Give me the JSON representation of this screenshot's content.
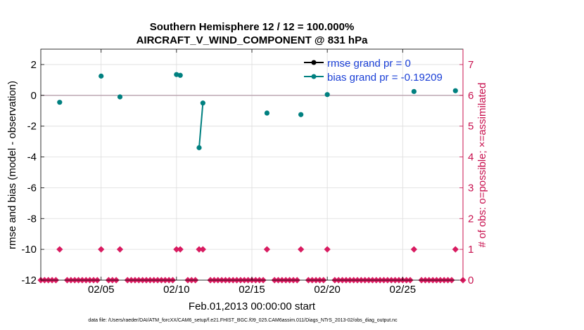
{
  "chart_data": {
    "type": "scatter",
    "title": [
      "Southern Hemisphere 12 / 12 = 100.000%",
      "AIRCRAFT_V_WIND_COMPONENT @ 831 hPa"
    ],
    "xlabel": "Feb.01,2013 00:00:00 start",
    "ylabel_left": "rmse and bias (model - observation)",
    "ylabel_right": "# of obs: o=possible; ×=assimilated",
    "xlim": [
      1.0,
      29.0
    ],
    "ylim_left": [
      -12,
      3
    ],
    "ylim_right": [
      0,
      7.5
    ],
    "x_ticks": [
      {
        "value": 5.0,
        "label": "02/05"
      },
      {
        "value": 10.0,
        "label": "02/10"
      },
      {
        "value": 15.0,
        "label": "02/15"
      },
      {
        "value": 20.0,
        "label": "02/20"
      },
      {
        "value": 25.0,
        "label": "02/25"
      }
    ],
    "y_ticks_left": [
      2,
      0,
      -2,
      -4,
      -6,
      -8,
      -10,
      -12
    ],
    "y_ticks_right": [
      0,
      1,
      2,
      3,
      4,
      5,
      6,
      7
    ],
    "grid": true,
    "zero_line": 0,
    "legend_position": "top-right",
    "series": [
      {
        "name": "rmse grand pr = 0",
        "color": "#000000",
        "marker": "circle",
        "points": []
      },
      {
        "name": "bias grand pr = -0.19209",
        "color": "#008080",
        "marker": "circle",
        "segments": [
          [
            [
              2.25,
              -0.45
            ]
          ],
          [
            [
              5.0,
              1.25
            ]
          ],
          [
            [
              6.25,
              -0.1
            ]
          ],
          [
            [
              10.0,
              1.35
            ],
            [
              10.25,
              1.3
            ]
          ],
          [
            [
              11.5,
              -3.4
            ],
            [
              11.75,
              -0.5
            ]
          ],
          [
            [
              16.0,
              -1.15
            ]
          ],
          [
            [
              18.25,
              -1.25
            ]
          ],
          [
            [
              20.0,
              0.05
            ]
          ],
          [
            [
              25.75,
              0.25
            ]
          ],
          [
            [
              28.5,
              0.3
            ]
          ]
        ]
      }
    ],
    "obs_counts": {
      "name": "# of obs",
      "color": "#d81b60",
      "x_start": 1.0,
      "x_step": 0.25,
      "x_end": 29.0,
      "one_obs_x": [
        2.25,
        5.0,
        6.25,
        10.0,
        10.25,
        11.5,
        11.75,
        16.0,
        18.25,
        20.0,
        25.75,
        28.5
      ],
      "gap_x": [
        2.5,
        5.25,
        6.5,
        10.5,
        12.0,
        16.25,
        18.5,
        20.25,
        26.0,
        28.75
      ]
    },
    "footnote": "data file: /Users/raeder/DAI/ATM_forcXX/CAM6_setup/f.e21.FHIST_BGC.f09_025.CAM6assim.011/Diags_NTrS_2013-02/obs_diag_output.nc"
  }
}
